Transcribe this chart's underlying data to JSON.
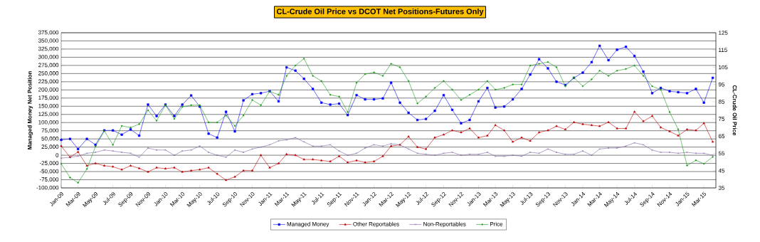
{
  "chart_data": {
    "type": "line",
    "title": "CL-Crude Oil Price vs DCOT Net Positions-Futures Only",
    "ylabel": "Managed Money Net Position",
    "y2label": "CL-Crude Oil Price",
    "x": [
      "2009-01",
      "2009-02",
      "2009-03",
      "2009-04",
      "2009-05",
      "2009-06",
      "2009-07",
      "2009-08",
      "2009-09",
      "2009-10",
      "2009-11",
      "2009-12",
      "2010-01",
      "2010-02",
      "2010-03",
      "2010-04",
      "2010-05",
      "2010-06",
      "2010-07",
      "2010-08",
      "2010-09",
      "2010-10",
      "2010-11",
      "2010-12",
      "2011-01",
      "2011-02",
      "2011-03",
      "2011-04",
      "2011-05",
      "2011-06",
      "2011-07",
      "2011-08",
      "2011-09",
      "2011-10",
      "2011-11",
      "2011-12",
      "2012-01",
      "2012-02",
      "2012-03",
      "2012-04",
      "2012-05",
      "2012-06",
      "2012-07",
      "2012-08",
      "2012-09",
      "2012-10",
      "2012-11",
      "2012-12",
      "2013-01",
      "2013-02",
      "2013-03",
      "2013-04",
      "2013-05",
      "2013-06",
      "2013-07",
      "2013-08",
      "2013-09",
      "2013-10",
      "2013-11",
      "2013-12",
      "2014-01",
      "2014-02",
      "2014-03",
      "2014-04",
      "2014-05",
      "2014-06",
      "2014-07",
      "2014-08",
      "2014-09",
      "2014-10",
      "2014-11",
      "2014-12",
      "2015-01",
      "2015-02",
      "2015-03",
      "2015-04"
    ],
    "series": [
      {
        "name": "Managed Money",
        "color": "#0000ff",
        "marker": "square",
        "values": [
          47000,
          50000,
          19000,
          50000,
          32000,
          76000,
          76000,
          63000,
          79000,
          60000,
          155000,
          120000,
          155000,
          120000,
          155000,
          183000,
          149000,
          66000,
          54000,
          133000,
          73000,
          168000,
          187000,
          190000,
          196000,
          165000,
          269000,
          259000,
          234000,
          203000,
          161000,
          155000,
          158000,
          123000,
          184000,
          171000,
          171000,
          174000,
          222000,
          161000,
          130000,
          108000,
          111000,
          136000,
          184000,
          139000,
          98000,
          108000,
          165000,
          206000,
          146000,
          149000,
          171000,
          203000,
          247000,
          294000,
          266000,
          225000,
          215000,
          237000,
          253000,
          285000,
          335000,
          291000,
          323000,
          332000,
          304000,
          256000,
          190000,
          206000,
          196000,
          193000,
          190000,
          203000,
          161000,
          237000
        ]
      },
      {
        "name": "Other Reportables",
        "color": "#c00000",
        "marker": "triangle",
        "values": [
          28000,
          -6000,
          10000,
          -32000,
          -25000,
          -32000,
          -35000,
          -44000,
          -32000,
          -40000,
          -51000,
          -38000,
          -41000,
          -38000,
          -51000,
          -47000,
          -44000,
          -38000,
          -57000,
          -76000,
          -66000,
          -47000,
          -47000,
          0,
          -38000,
          -25000,
          3000,
          0,
          -13000,
          -13000,
          -16000,
          -19000,
          -3000,
          -22000,
          -16000,
          -22000,
          -19000,
          -3000,
          28000,
          32000,
          57000,
          25000,
          19000,
          54000,
          63000,
          76000,
          70000,
          82000,
          54000,
          60000,
          92000,
          76000,
          41000,
          54000,
          44000,
          70000,
          76000,
          89000,
          79000,
          101000,
          95000,
          92000,
          89000,
          101000,
          82000,
          82000,
          133000,
          104000,
          120000,
          85000,
          73000,
          60000,
          79000,
          76000,
          98000,
          41000
        ]
      },
      {
        "name": "Non-Reportables",
        "color": "#8064a2",
        "marker": "cross",
        "values": [
          -9000,
          -6000,
          -3000,
          6000,
          9000,
          16000,
          13000,
          9000,
          6000,
          -6000,
          22000,
          16000,
          16000,
          0,
          13000,
          16000,
          28000,
          9000,
          0,
          -6000,
          16000,
          9000,
          19000,
          25000,
          32000,
          44000,
          47000,
          54000,
          41000,
          28000,
          28000,
          32000,
          13000,
          0,
          6000,
          22000,
          32000,
          28000,
          35000,
          32000,
          19000,
          6000,
          3000,
          0,
          6000,
          9000,
          0,
          3000,
          3000,
          9000,
          -3000,
          -3000,
          0,
          -3000,
          9000,
          6000,
          19000,
          9000,
          3000,
          3000,
          13000,
          0,
          19000,
          22000,
          22000,
          28000,
          38000,
          32000,
          16000,
          9000,
          9000,
          6000,
          9000,
          6000,
          6000,
          0
        ]
      },
      {
        "name": "Price",
        "color": "#1a9a1a",
        "marker": "circle",
        "axis": "y2",
        "values": [
          49,
          41,
          38,
          46,
          59,
          68,
          60,
          71,
          70,
          72,
          80,
          74,
          83,
          75,
          82,
          83,
          83,
          73,
          73,
          77,
          71,
          77,
          86,
          83,
          91,
          89,
          100,
          106,
          110,
          100,
          97,
          89,
          88,
          79,
          96,
          101,
          102,
          100,
          107,
          105,
          97,
          84,
          88,
          93,
          97,
          92,
          86,
          89,
          92,
          97,
          92,
          93,
          95,
          95,
          106,
          107,
          108,
          105,
          94,
          99,
          94,
          98,
          103,
          100,
          103,
          104,
          106,
          100,
          94,
          92,
          79,
          69,
          48,
          51,
          49,
          53
        ]
      }
    ],
    "xlim": [
      "2009-01",
      "2015-04-12"
    ],
    "xticks": [
      {
        "value": "2009-01",
        "label": "Jan-09"
      },
      {
        "value": "2009-03",
        "label": "Mar-09"
      },
      {
        "value": "2009-05",
        "label": "May-09"
      },
      {
        "value": "2009-07",
        "label": "Jul-09"
      },
      {
        "value": "2009-09",
        "label": "Sep-09"
      },
      {
        "value": "2009-11",
        "label": "Nov-09"
      },
      {
        "value": "2010-01",
        "label": "Jan-10"
      },
      {
        "value": "2010-03",
        "label": "Mar-10"
      },
      {
        "value": "2010-05",
        "label": "May-10"
      },
      {
        "value": "2010-07",
        "label": "Jul-10"
      },
      {
        "value": "2010-09",
        "label": "Sep-10"
      },
      {
        "value": "2010-11",
        "label": "Nov-10"
      },
      {
        "value": "2011-01",
        "label": "Jan-11"
      },
      {
        "value": "2011-03",
        "label": "Mar-11"
      },
      {
        "value": "2011-05",
        "label": "May-11"
      },
      {
        "value": "2011-07",
        "label": "Jul-11"
      },
      {
        "value": "2011-09",
        "label": "Sep-11"
      },
      {
        "value": "2011-11",
        "label": "Nov-11"
      },
      {
        "value": "2012-01",
        "label": "Jan-12"
      },
      {
        "value": "2012-03",
        "label": "Mar-12"
      },
      {
        "value": "2012-05",
        "label": "May-12"
      },
      {
        "value": "2012-07",
        "label": "Jul-12"
      },
      {
        "value": "2012-09",
        "label": "Sep-12"
      },
      {
        "value": "2012-11",
        "label": "Nov-12"
      },
      {
        "value": "2013-01",
        "label": "Jan-13"
      },
      {
        "value": "2013-03",
        "label": "Mar-13"
      },
      {
        "value": "2013-05",
        "label": "May-13"
      },
      {
        "value": "2013-07",
        "label": "Jul-13"
      },
      {
        "value": "2013-09",
        "label": "Sep-13"
      },
      {
        "value": "2013-11",
        "label": "Nov-13"
      },
      {
        "value": "2014-01",
        "label": "Jan-14"
      },
      {
        "value": "2014-03",
        "label": "Mar-14"
      },
      {
        "value": "2014-05",
        "label": "May-14"
      },
      {
        "value": "2014-07",
        "label": "Jul-14"
      },
      {
        "value": "2014-09",
        "label": "Sep-14"
      },
      {
        "value": "2014-11",
        "label": "Nov-14"
      },
      {
        "value": "2015-01",
        "label": "Jan-15"
      },
      {
        "value": "2015-03",
        "label": "Mar-15"
      }
    ],
    "ylim": [
      -100000,
      375000
    ],
    "yticks": [
      {
        "value": -100000,
        "label": "-100,000"
      },
      {
        "value": -75000,
        "label": "-75,000"
      },
      {
        "value": -50000,
        "label": "-50,000"
      },
      {
        "value": -25000,
        "label": "-25,000"
      },
      0,
      {
        "value": 25000,
        "label": "25,000"
      },
      {
        "value": 50000,
        "label": "50,000"
      },
      {
        "value": 75000,
        "label": "75,000"
      },
      {
        "value": 100000,
        "label": "100,000"
      },
      {
        "value": 125000,
        "label": "125,000"
      },
      {
        "value": 150000,
        "label": "150,000"
      },
      {
        "value": 175000,
        "label": "175,000"
      },
      {
        "value": 200000,
        "label": "200,000"
      },
      {
        "value": 225000,
        "label": "225,000"
      },
      {
        "value": 250000,
        "label": "250,000"
      },
      {
        "value": 275000,
        "label": "275,000"
      },
      {
        "value": 300000,
        "label": "300,000"
      },
      {
        "value": 325000,
        "label": "325,000"
      },
      {
        "value": 350000,
        "label": "350,000"
      },
      {
        "value": 375000,
        "label": "375,000"
      }
    ],
    "y2lim": [
      35,
      125
    ],
    "y2ticks": [
      35,
      45,
      55,
      65,
      75,
      85,
      95,
      105,
      115,
      125
    ],
    "grid": "y",
    "legend": "bottom",
    "line_style": "solid"
  }
}
